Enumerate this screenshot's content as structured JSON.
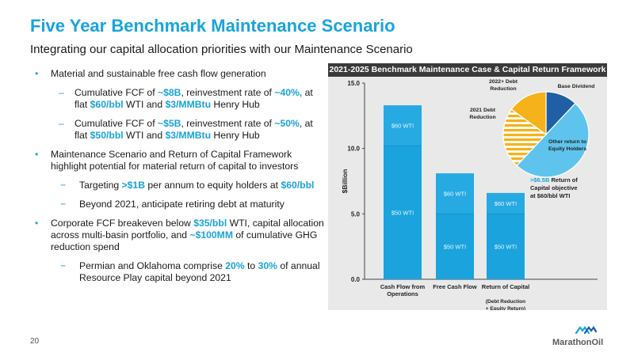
{
  "header": {
    "title": "Five Year Benchmark Maintenance Scenario",
    "subtitle": "Integrating our capital allocation priorities with our Maintenance Scenario"
  },
  "bullets": [
    {
      "level": 1,
      "marker": "•",
      "parts": [
        {
          "t": "Material and sustainable free cash flow generation"
        }
      ]
    },
    {
      "level": 2,
      "marker": "–",
      "parts": [
        {
          "t": "Cumulative FCF of "
        },
        {
          "t": "~$8B",
          "h": true
        },
        {
          "t": ", reinvestment rate of "
        },
        {
          "t": "~40%,",
          "h": true
        },
        {
          "t": " at flat "
        },
        {
          "t": "$60/bbl",
          "h": true
        },
        {
          "t": " WTI and "
        },
        {
          "t": "$3/MMBtu",
          "h": true
        },
        {
          "t": " Henry Hub"
        }
      ]
    },
    {
      "level": 2,
      "marker": "–",
      "parts": [
        {
          "t": "Cumulative FCF of "
        },
        {
          "t": "~$5B",
          "h": true
        },
        {
          "t": ", reinvestment rate of "
        },
        {
          "t": "~50%",
          "h": true
        },
        {
          "t": ", at flat "
        },
        {
          "t": "$50/bbl",
          "h": true
        },
        {
          "t": " WTI and "
        },
        {
          "t": "$3/MMBtu",
          "h": true
        },
        {
          "t": " Henry Hub"
        }
      ]
    },
    {
      "level": 1,
      "marker": "•",
      "parts": [
        {
          "t": "Maintenance Scenario and Return of Capital Framework highlight potential for material return of capital to investors"
        }
      ]
    },
    {
      "level": 3,
      "marker": "−",
      "parts": [
        {
          "t": "Targeting "
        },
        {
          "t": ">$1B",
          "h": true
        },
        {
          "t": " per annum to equity holders at "
        },
        {
          "t": "$60/bbl",
          "h": true
        }
      ]
    },
    {
      "level": 3,
      "marker": "−",
      "parts": [
        {
          "t": "Beyond 2021, anticipate retiring debt at maturity"
        }
      ]
    },
    {
      "level": 1,
      "marker": "•",
      "parts": [
        {
          "t": "Corporate FCF breakeven below "
        },
        {
          "t": "$35/bbl",
          "h": true
        },
        {
          "t": " WTI, capital allocation across multi-basin portfolio, and "
        },
        {
          "t": "~$100MM",
          "h": true
        },
        {
          "t": " of cumulative GHG reduction spend"
        }
      ]
    },
    {
      "level": 3,
      "marker": "−",
      "parts": [
        {
          "t": "Permian and Oklahoma comprise "
        },
        {
          "t": "20%",
          "h": true
        },
        {
          "t": " to "
        },
        {
          "t": "30%",
          "h": true
        },
        {
          "t": " of annual Resource Play capital beyond 2021"
        }
      ]
    }
  ],
  "panel_title": "2021-2025 Benchmark Maintenance Case & Capital Return Framework",
  "chart_data": {
    "type": "bar",
    "ylabel": "$Billion",
    "ylim": [
      0,
      15
    ],
    "yticks": [
      "0.0",
      "5.0",
      "10.0",
      "15.0"
    ],
    "ytick_values": [
      0,
      5,
      10,
      15
    ],
    "categories": [
      {
        "line1": "Cash Flow from",
        "line2": "Operations",
        "line3": "",
        "line4": ""
      },
      {
        "line1": "Free Cash Flow",
        "line2": "",
        "line3": "",
        "line4": ""
      },
      {
        "line1": "Return of Capital",
        "line2": "",
        "line3": "(Debt Reduction",
        "line4": "+ Equity Return)"
      }
    ],
    "bars": [
      {
        "base": 0,
        "low": 10.2,
        "high": 13.3,
        "low_label": "$50 WTI",
        "high_label": "$60 WTI"
      },
      {
        "base": 0,
        "low": 5.0,
        "high": 8.1,
        "low_label": "$50 WTI",
        "high_label": "$60 WTI"
      },
      {
        "base": 0,
        "low": 5.0,
        "high": 6.6,
        "low_label": "$50 WTI",
        "high_label": "$60 WTI"
      }
    ],
    "annotation": {
      "value_text": ">$6.5B",
      "rest_line1": " Return of",
      "line2": "Capital objective",
      "line3": "at $60/bbl WTI"
    },
    "pie": {
      "slices": [
        {
          "label": "Base Dividend",
          "value": 12,
          "color": "#1f5fa6",
          "pattern": "solid"
        },
        {
          "label": "Other return to Equity Holders",
          "value": 50,
          "color": "#5ec4ee",
          "pattern": "solid"
        },
        {
          "label": "2021 Debt Reduction",
          "value": 23,
          "color": "#f5b21a",
          "pattern": "stripe"
        },
        {
          "label": "2022+ Debt Reduction",
          "value": 15,
          "color": "#f5b21a",
          "pattern": "solid"
        }
      ],
      "labels": {
        "base_dividend": "Base Dividend",
        "other_line1": "Other return to",
        "other_line2": "Equity Holders",
        "debt2021_line1": "2021 Debt",
        "debt2021_line2": "Reduction",
        "debt2022_line1": "2022+ Debt",
        "debt2022_line2": "Reduction"
      }
    },
    "colors": {
      "low": "#1aa3dc",
      "high": "#27a9e1",
      "divider": "#1595cb"
    }
  },
  "footer": {
    "page_number": "20",
    "logo_text": "MarathonOil"
  }
}
